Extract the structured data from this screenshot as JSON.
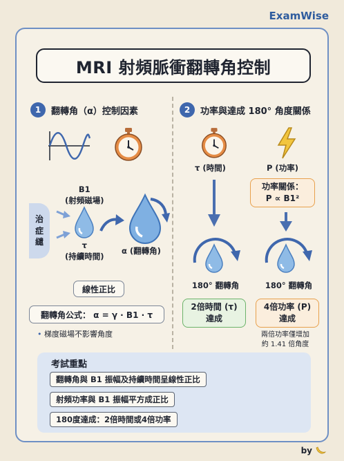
{
  "brand": "ExamWise",
  "title": "MRI 射頻脈衝翻轉角控制",
  "section1": {
    "number": "1",
    "heading": "翻轉角（α）控制因素",
    "b1_label": "B1",
    "b1_sub": "(射頻磁場)",
    "tau_label": "τ",
    "tau_sub": "(持續時間)",
    "alpha_label": "α (翻轉角)",
    "side_tag": "治\n症\n繾",
    "linear": "線性正比",
    "formula": "翻轉角公式： α = γ · B1 · τ",
    "bullet": "梯度磁場不影響角度"
  },
  "section2": {
    "number": "2",
    "heading": "功率與達成 180° 角度關係",
    "tau_label": "τ (時間)",
    "p_label": "P (功率)",
    "relation_line1": "功率關係：",
    "relation_line2": "P ∝ B1²",
    "left_angle": "180° 翻轉角",
    "right_angle": "180° 翻轉角",
    "left_result_line1": "2倍時間 (τ)",
    "left_result_line2": "達成",
    "right_result_line1": "4倍功率 (P)",
    "right_result_line2": "達成",
    "note_line1": "兩倍功率僅增加",
    "note_line2": "約 1.41 倍角度"
  },
  "exam": {
    "title": "考試重點",
    "items": [
      "翻轉角與 B1 振幅及持續時間呈線性正比",
      "射頻功率與 B1 振幅平方成正比",
      "180度達成：2倍時間或4倍功率"
    ]
  },
  "by": "by",
  "icons": [
    "sine-wave-icon",
    "stopwatch-icon",
    "lightning-icon",
    "water-drop-icon",
    "curved-arrow-icon",
    "right-arrow-icon",
    "down-arrow-icon",
    "banana-icon"
  ],
  "colors": {
    "accent": "#3f67ad",
    "orange": "#e8a04c",
    "green": "#6cb36a",
    "frame": "#6e8fc4"
  }
}
